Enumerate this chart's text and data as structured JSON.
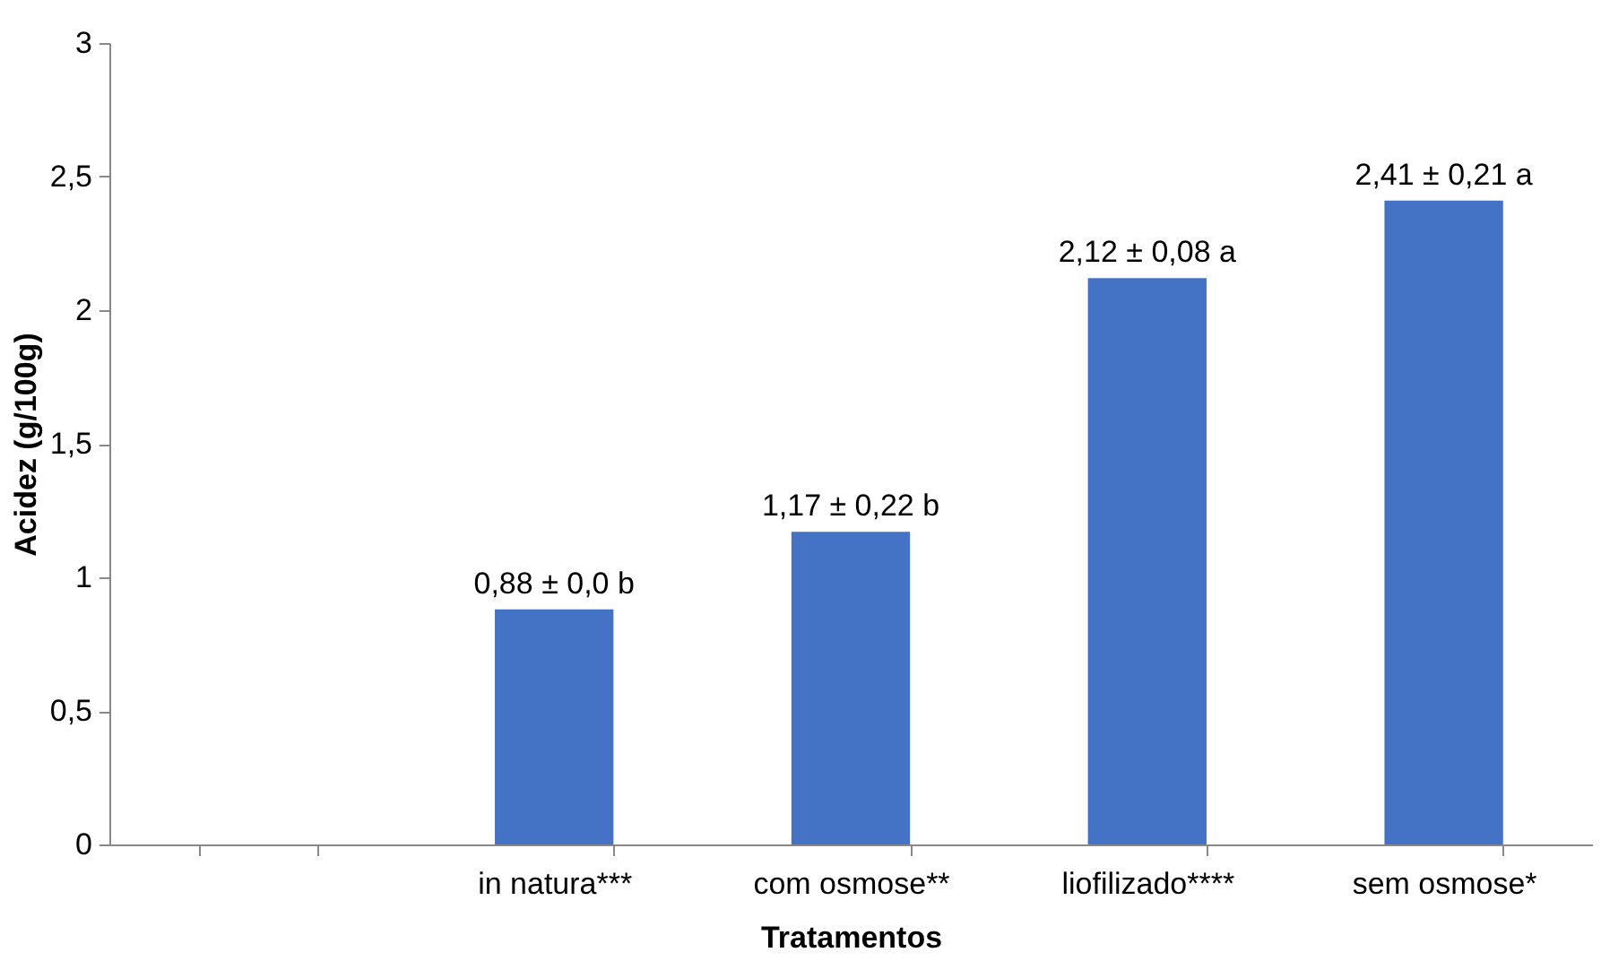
{
  "chart_data": {
    "type": "bar",
    "xlabel": "Tratamentos",
    "ylabel": "Acidez (g/100g)",
    "categories": [
      null,
      "in natura***",
      "com osmose**",
      "liofilizado****",
      "sem osmose*"
    ],
    "series": [
      {
        "color": "#4472c4",
        "values": [
          null,
          0.88,
          1.17,
          2.12,
          2.41
        ],
        "value_labels": [
          null,
          "0,88 ± 0,0 b",
          "1,17 ± 0,22 b",
          "2,12 ± 0,08 a",
          "2,41 ± 0,21 a"
        ]
      }
    ],
    "ylim": [
      0,
      3
    ],
    "yticks": [
      0,
      {
        "value": 0.5,
        "label": "0,5"
      },
      1,
      {
        "value": 1.5,
        "label": "1,5"
      },
      2,
      {
        "value": 2.5,
        "label": "2,5"
      },
      3
    ],
    "grid": false
  }
}
